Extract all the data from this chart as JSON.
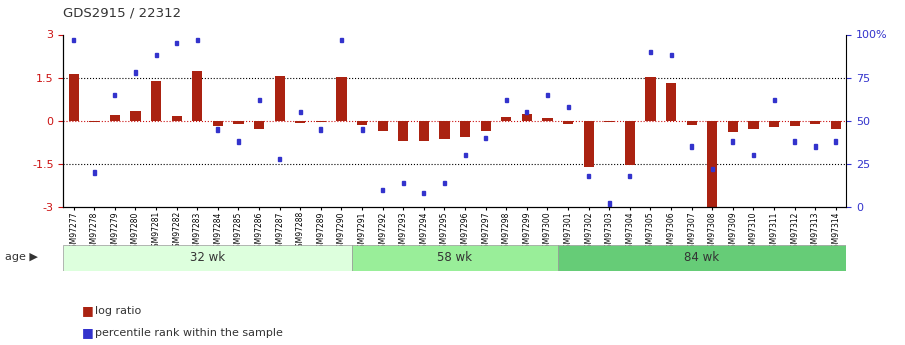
{
  "title": "GDS2915 / 22312",
  "samples": [
    "GSM97277",
    "GSM97278",
    "GSM97279",
    "GSM97280",
    "GSM97281",
    "GSM97282",
    "GSM97283",
    "GSM97284",
    "GSM97285",
    "GSM97286",
    "GSM97287",
    "GSM97288",
    "GSM97289",
    "GSM97290",
    "GSM97291",
    "GSM97292",
    "GSM97293",
    "GSM97294",
    "GSM97295",
    "GSM97296",
    "GSM97297",
    "GSM97298",
    "GSM97299",
    "GSM97300",
    "GSM97301",
    "GSM97302",
    "GSM97303",
    "GSM97304",
    "GSM97305",
    "GSM97306",
    "GSM97307",
    "GSM97308",
    "GSM97309",
    "GSM97310",
    "GSM97311",
    "GSM97312",
    "GSM97313",
    "GSM97314"
  ],
  "log_ratio": [
    1.62,
    -0.05,
    0.2,
    0.35,
    1.4,
    0.18,
    1.72,
    -0.18,
    -0.1,
    -0.3,
    1.55,
    -0.07,
    -0.05,
    1.52,
    -0.15,
    -0.35,
    -0.7,
    -0.7,
    -0.65,
    -0.55,
    -0.35,
    0.12,
    0.22,
    0.08,
    -0.1,
    -1.6,
    -0.05,
    -1.55,
    1.52,
    1.3,
    -0.15,
    -3.05,
    -0.4,
    -0.3,
    -0.2,
    -0.18,
    -0.12,
    -0.3
  ],
  "percentile": [
    97,
    20,
    65,
    78,
    88,
    95,
    97,
    45,
    38,
    62,
    28,
    55,
    45,
    97,
    45,
    10,
    14,
    8,
    14,
    30,
    40,
    62,
    55,
    65,
    58,
    18,
    2,
    18,
    90,
    88,
    35,
    22,
    38,
    30,
    62,
    38,
    35,
    38
  ],
  "group_boundaries": [
    0,
    14,
    24,
    38
  ],
  "group_labels": [
    "32 wk",
    "58 wk",
    "84 wk"
  ],
  "bar_color": "#AA2211",
  "dot_color": "#3333CC",
  "hline0_color": "#CC1111",
  "hline_color": "#000000",
  "ylim": [
    -3,
    3
  ],
  "yticks_left": [
    -3,
    -1.5,
    0,
    1.5,
    3
  ],
  "yticks_right": [
    0,
    25,
    50,
    75,
    100
  ],
  "bg_color": "#ffffff",
  "group_colors": [
    "#ddffdd",
    "#99ee99",
    "#66cc77"
  ]
}
